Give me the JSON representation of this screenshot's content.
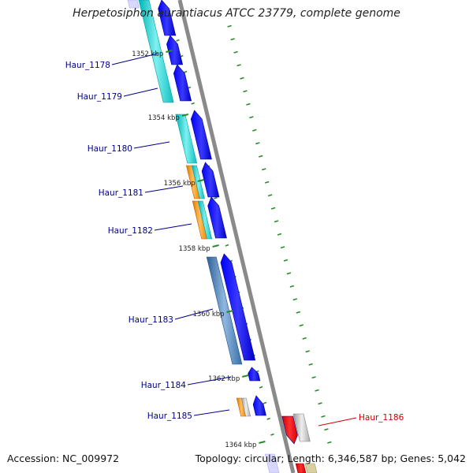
{
  "title": "Herpetosiphon aurantiacus ATCC 23779, complete genome",
  "accession": "Accession: NC_009972",
  "topology": "Topology: circular; Length: 6,346,587 bp; Genes: 5,042",
  "colors": {
    "backbone": "#8a8a8a",
    "cds": "#0000ee",
    "cyan": "#16c6c6",
    "steel": "#4a7fb5",
    "orange": "#f59000",
    "red": "#e00000",
    "gray": "#b5b5b5",
    "gc_ticks": "#2a8a2a",
    "label_blue": "#00008b",
    "label_red": "#cc0000"
  },
  "kbp_ticks": [
    {
      "label": "1352 kbp"
    },
    {
      "label": "1354 kbp"
    },
    {
      "label": "1356 kbp"
    },
    {
      "label": "1358 kbp"
    },
    {
      "label": "1360 kbp"
    },
    {
      "label": "1362 kbp"
    },
    {
      "label": "1364 kbp"
    }
  ],
  "genes": [
    {
      "name": "Haur_1178",
      "strand": "forward"
    },
    {
      "name": "Haur_1179",
      "strand": "forward"
    },
    {
      "name": "Haur_1180",
      "strand": "forward"
    },
    {
      "name": "Haur_1181",
      "strand": "forward"
    },
    {
      "name": "Haur_1182",
      "strand": "forward"
    },
    {
      "name": "Haur_1183",
      "strand": "forward"
    },
    {
      "name": "Haur_1184",
      "strand": "forward"
    },
    {
      "name": "Haur_1185",
      "strand": "forward"
    },
    {
      "name": "Haur_1186",
      "strand": "reverse"
    }
  ]
}
